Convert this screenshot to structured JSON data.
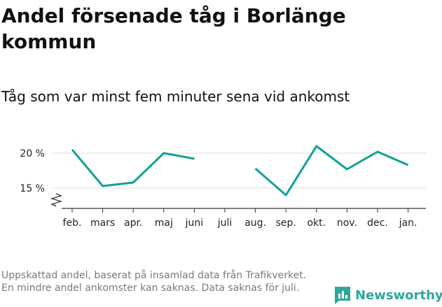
{
  "title": "Andel försenade tåg i Borlänge kommun",
  "subtitle": "Tåg som var minst fem minuter sena vid ankomst",
  "footnote": "Uppskattad andel, baserat på insamlad data från Trafikverket. En mindre andel ankomster kan saknas. Data saknas för juli.",
  "brand": {
    "name": "Newsworthy",
    "icon": "newsworthy-logo-icon",
    "color": "#2ea79c"
  },
  "colors": {
    "line": "#12a194",
    "grid": "#dddddd",
    "axis": "#333333"
  },
  "chart_data": {
    "type": "line",
    "title": "Andel försenade tåg i Borlänge kommun",
    "subtitle": "Tåg som var minst fem minuter sena vid ankomst",
    "xlabel": "",
    "ylabel": "",
    "categories": [
      "feb.",
      "mars",
      "apr.",
      "maj",
      "juni",
      "juli",
      "aug.",
      "sep.",
      "okt.",
      "nov.",
      "dec.",
      "jan."
    ],
    "series": [
      {
        "values": [
          20.5,
          15.3,
          15.8,
          20.0,
          19.2,
          null,
          17.8,
          14.0,
          21.0,
          17.7,
          20.2,
          18.3
        ]
      }
    ],
    "yticks": [
      15,
      20
    ],
    "ytick_labels": [
      "15 %",
      "20 %"
    ],
    "ylim": [
      12,
      22
    ],
    "y_axis_break": true,
    "grid": true,
    "legend": "none"
  }
}
